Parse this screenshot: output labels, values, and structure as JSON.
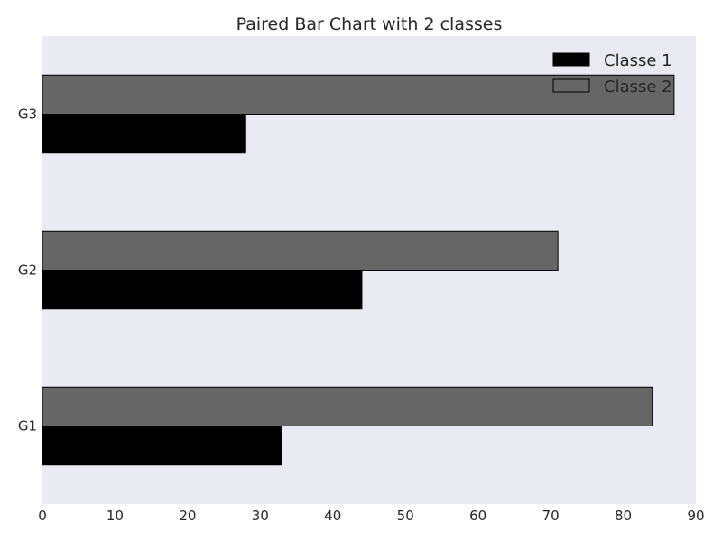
{
  "chart_data": {
    "type": "bar",
    "orientation": "horizontal",
    "title": "Paired Bar Chart with 2 classes",
    "xlabel": "",
    "ylabel": "",
    "categories": [
      "G1",
      "G2",
      "G3"
    ],
    "series": [
      {
        "name": "Classe 1",
        "values": [
          33,
          44,
          28
        ],
        "color": "#000000"
      },
      {
        "name": "Classe 2",
        "values": [
          84,
          71,
          87
        ],
        "color": "#666666"
      }
    ],
    "xlim": [
      0,
      90
    ],
    "xticks": [
      "0",
      "10",
      "20",
      "30",
      "40",
      "50",
      "60",
      "70",
      "80",
      "90"
    ],
    "grid": false,
    "legend_position": "top-right",
    "background_color": "#eaeaf2",
    "edge_color": "#000000"
  }
}
